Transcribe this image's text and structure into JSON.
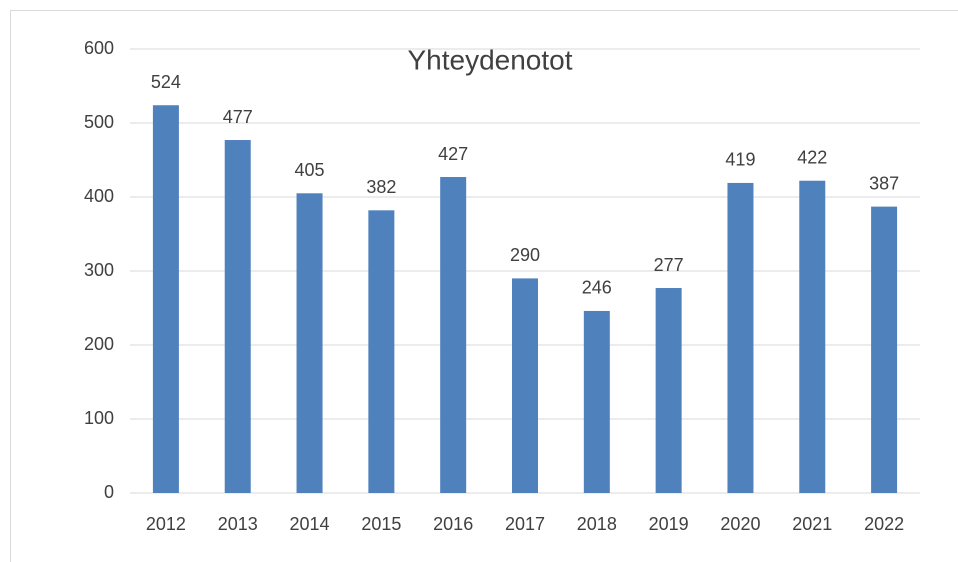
{
  "chart_data": {
    "type": "bar",
    "title": "Yhteydenotot",
    "categories": [
      "2012",
      "2013",
      "2014",
      "2015",
      "2016",
      "2017",
      "2018",
      "2019",
      "2020",
      "2021",
      "2022"
    ],
    "values": [
      524,
      477,
      405,
      382,
      427,
      290,
      246,
      277,
      419,
      422,
      387
    ],
    "color": "#4f81bd",
    "ylim": [
      0,
      600
    ],
    "yticks": [
      0,
      100,
      200,
      300,
      400,
      500,
      600
    ],
    "grid": true
  }
}
